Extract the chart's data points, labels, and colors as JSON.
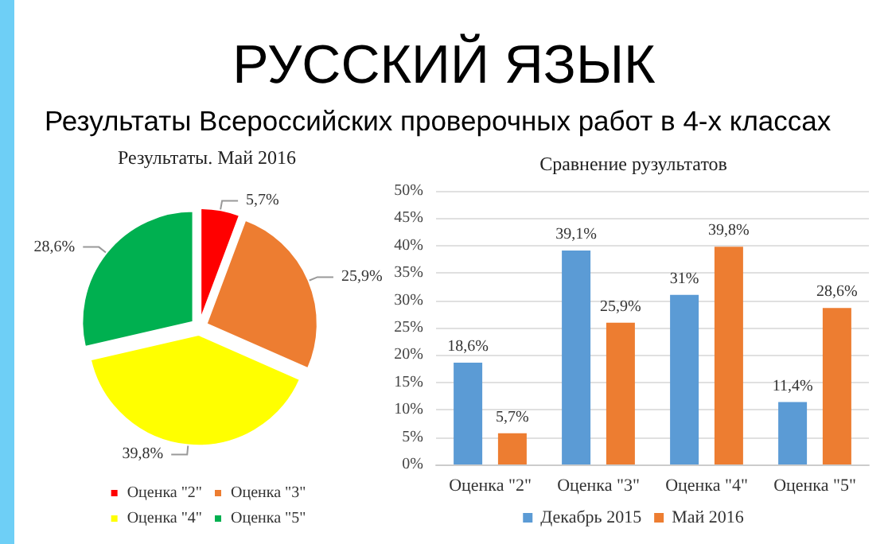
{
  "chart_data": [
    {
      "type": "pie",
      "title": "РУССКИЙ ЯЗЫК",
      "subtitle": "Результаты Всероссийских проверочных работ в 4-х классах",
      "xlabel": "Результаты. Май 2016",
      "categories": [
        "Оценка \"2\"",
        "Оценка \"3\"",
        "Оценка \"4\"",
        "Оценка \"5\""
      ],
      "values": [
        5.7,
        25.9,
        39.8,
        28.6
      ],
      "colors": [
        "#ff0000",
        "#ed7d31",
        "#ffff00",
        "#00b050"
      ],
      "value_labels": [
        "5,7%",
        "25,9%",
        "39,8%",
        "28,6%"
      ],
      "legend": "bottom"
    },
    {
      "type": "bar",
      "title": "Сравнение рузультатов",
      "categories": [
        "Оценка \"2\"",
        "Оценка \"3\"",
        "Оценка \"4\"",
        "Оценка \"5\""
      ],
      "series": [
        {
          "name": "Декабрь 2015",
          "color": "#5b9bd5",
          "values": [
            18.6,
            39.1,
            31,
            11.4
          ],
          "value_labels": [
            "18,6%",
            "39,1%",
            "31%",
            "11,4%"
          ]
        },
        {
          "name": "Май 2016",
          "color": "#ed7d31",
          "values": [
            5.7,
            25.9,
            39.8,
            28.6
          ],
          "value_labels": [
            "5,7%",
            "25,9%",
            "39,8%",
            "28,6%"
          ]
        }
      ],
      "ylim": [
        0,
        50
      ],
      "yticks": [
        {
          "value": 0,
          "label": "0%"
        },
        {
          "value": 5,
          "label": "5%"
        },
        {
          "value": 10,
          "label": "10%"
        },
        {
          "value": 15,
          "label": "15%"
        },
        {
          "value": 20,
          "label": "20%"
        },
        {
          "value": 25,
          "label": "25%"
        },
        {
          "value": 30,
          "label": "30%"
        },
        {
          "value": 35,
          "label": "35%"
        },
        {
          "value": 40,
          "label": "40%"
        },
        {
          "value": 45,
          "label": "45%"
        },
        {
          "value": 50,
          "label": "50%"
        }
      ],
      "grid": "y",
      "legend": "bottom"
    }
  ]
}
